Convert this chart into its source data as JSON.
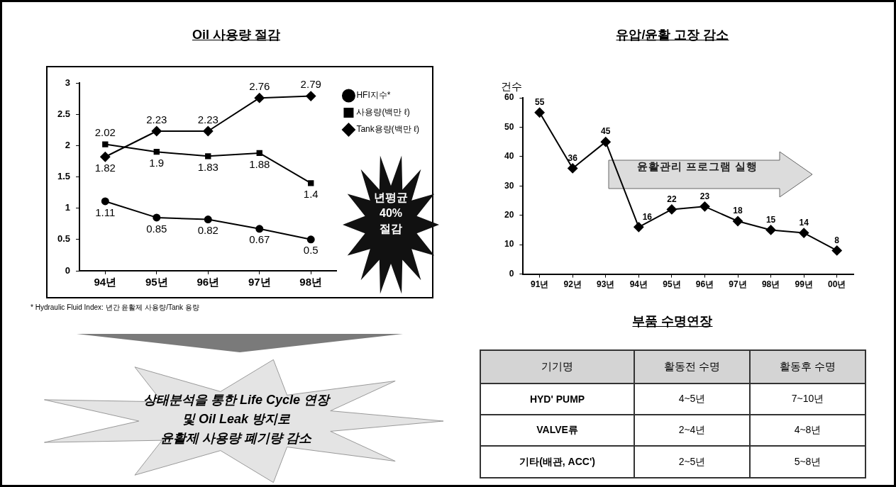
{
  "chart_data": [
    {
      "type": "line",
      "title": "Oil 사용량 절감",
      "categories": [
        "94년",
        "95년",
        "96년",
        "97년",
        "98년"
      ],
      "series": [
        {
          "name": "HFI지수*",
          "color": "#000000",
          "marker": "circle",
          "values": [
            1.11,
            0.85,
            0.82,
            0.67,
            0.5
          ]
        },
        {
          "name": "사용량(백만 ℓ)",
          "color": "#000000",
          "marker": "square",
          "values": [
            2.02,
            1.9,
            1.83,
            1.88,
            1.4
          ]
        },
        {
          "name": "Tank용량(백만 ℓ)",
          "color": "#000000",
          "marker": "diamond",
          "values": [
            1.82,
            2.23,
            2.23,
            2.76,
            2.79
          ]
        }
      ],
      "ylim": [
        0,
        3
      ],
      "yticks": [
        0,
        0.5,
        1,
        1.5,
        2,
        2.5,
        3
      ],
      "data_labels": true,
      "legend": "top right",
      "annotations": [
        "* Hydraulic Fluid Index: 년간 윤활제 사용량/Tank 용량",
        "년평균\n40%\n절감",
        "상태분석을 통한 Life Cycle 연장\n및 Oil Leak 방지로\n윤활제 사용량 폐기량 감소"
      ]
    },
    {
      "type": "line",
      "title": "유압/윤활 고장 감소",
      "ylabel": "건수",
      "categories": [
        "91년",
        "92년",
        "93년",
        "94년",
        "95년",
        "96년",
        "97년",
        "98년",
        "99년",
        "00년"
      ],
      "series": [
        {
          "color": "#000000",
          "marker": "diamond",
          "values": [
            55,
            36,
            45,
            16,
            22,
            23,
            18,
            15,
            14,
            8
          ]
        }
      ],
      "ylim": [
        0,
        60
      ],
      "yticks": [
        0,
        10,
        20,
        30,
        40,
        50,
        60
      ],
      "data_labels": true,
      "annotations": [
        "윤활관리 프로그램 실행"
      ]
    },
    {
      "type": "other",
      "title": "부품 수명연장",
      "annotations": [
        "기기명",
        "활동전 수명",
        "활동후 수명",
        "HYD' PUMP",
        "4~5년",
        "7~10년",
        "VALVE류",
        "2~4년",
        "4~8년",
        "기타(배관, ACC')",
        "2~5년",
        "5~8년"
      ]
    }
  ]
}
